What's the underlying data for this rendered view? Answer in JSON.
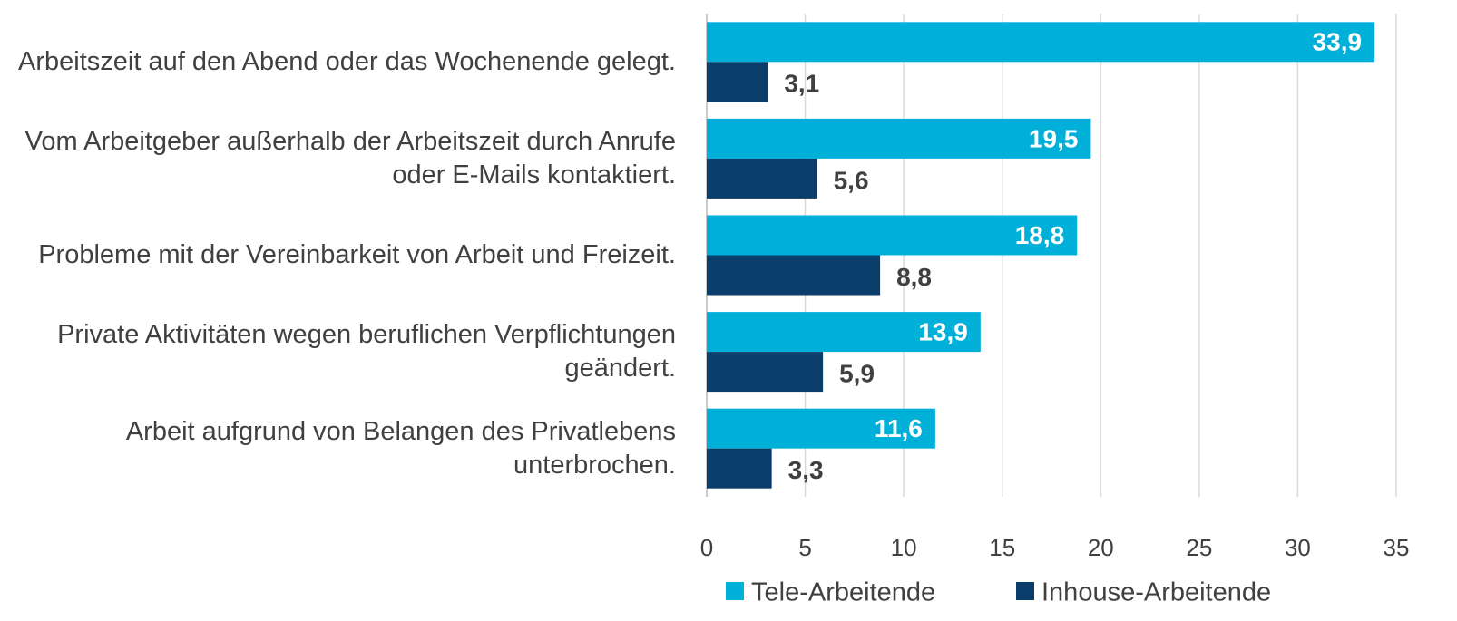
{
  "chart_data": {
    "type": "bar",
    "orientation": "horizontal",
    "categories": [
      "Arbeitszeit auf den Abend oder das Wochenende gelegt.",
      "Vom Arbeitgeber außerhalb der Arbeitszeit durch Anrufe oder E-Mails kontaktiert.",
      "Probleme mit der Vereinbarkeit von Arbeit und Freizeit.",
      "Private Aktivitäten wegen beruflichen Verpflichtungen geändert.",
      "Arbeit aufgrund von Belangen des Privatlebens unterbrochen."
    ],
    "series": [
      {
        "name": "Tele-Arbeitende",
        "color": "#00b0d8",
        "values": [
          33.9,
          19.5,
          18.8,
          13.9,
          11.6
        ],
        "value_labels": [
          "33,9",
          "19,5",
          "18,8",
          "13,9",
          "11,6"
        ]
      },
      {
        "name": "Inhouse-Arbeitende",
        "color": "#0b3d6b",
        "values": [
          3.1,
          5.6,
          8.8,
          5.9,
          3.3
        ],
        "value_labels": [
          "3,1",
          "5,6",
          "8,8",
          "5,9",
          "3,3"
        ]
      }
    ],
    "xlim": [
      0,
      35
    ],
    "xticks": [
      0,
      5,
      10,
      15,
      20,
      25,
      30,
      35
    ],
    "grid": true,
    "legend": "bottom"
  }
}
